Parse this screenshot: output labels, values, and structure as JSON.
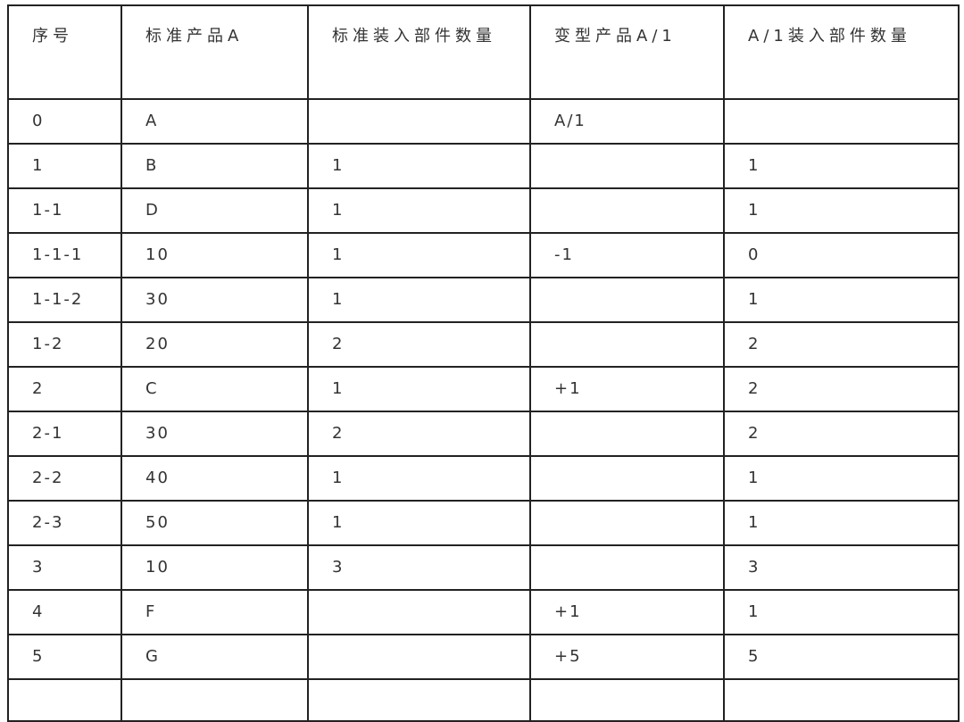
{
  "headers": [
    "序号",
    "标准产品A",
    "标准装入部件数量",
    "变型产品A/1",
    "A/1装入部件数量"
  ],
  "rows": [
    [
      "0",
      "A",
      "",
      "A/1",
      ""
    ],
    [
      "1",
      "B",
      "1",
      "",
      "1"
    ],
    [
      "1-1",
      "D",
      "1",
      "",
      "1"
    ],
    [
      "1-1-1",
      "10",
      "1",
      "-1",
      "0"
    ],
    [
      "1-1-2",
      "30",
      "1",
      "",
      "1"
    ],
    [
      "1-2",
      "20",
      "2",
      "",
      "2"
    ],
    [
      "2",
      "C",
      "1",
      "+1",
      "2"
    ],
    [
      "2-1",
      "30",
      "2",
      "",
      "2"
    ],
    [
      "2-2",
      "40",
      "1",
      "",
      "1"
    ],
    [
      "2-3",
      "50",
      "1",
      "",
      "1"
    ],
    [
      "3",
      "10",
      "3",
      "",
      "3"
    ],
    [
      "4",
      "F",
      "",
      "+1",
      "1"
    ],
    [
      "5",
      "G",
      "",
      "+5",
      "5"
    ],
    [
      "",
      "",
      "",
      "",
      ""
    ]
  ]
}
